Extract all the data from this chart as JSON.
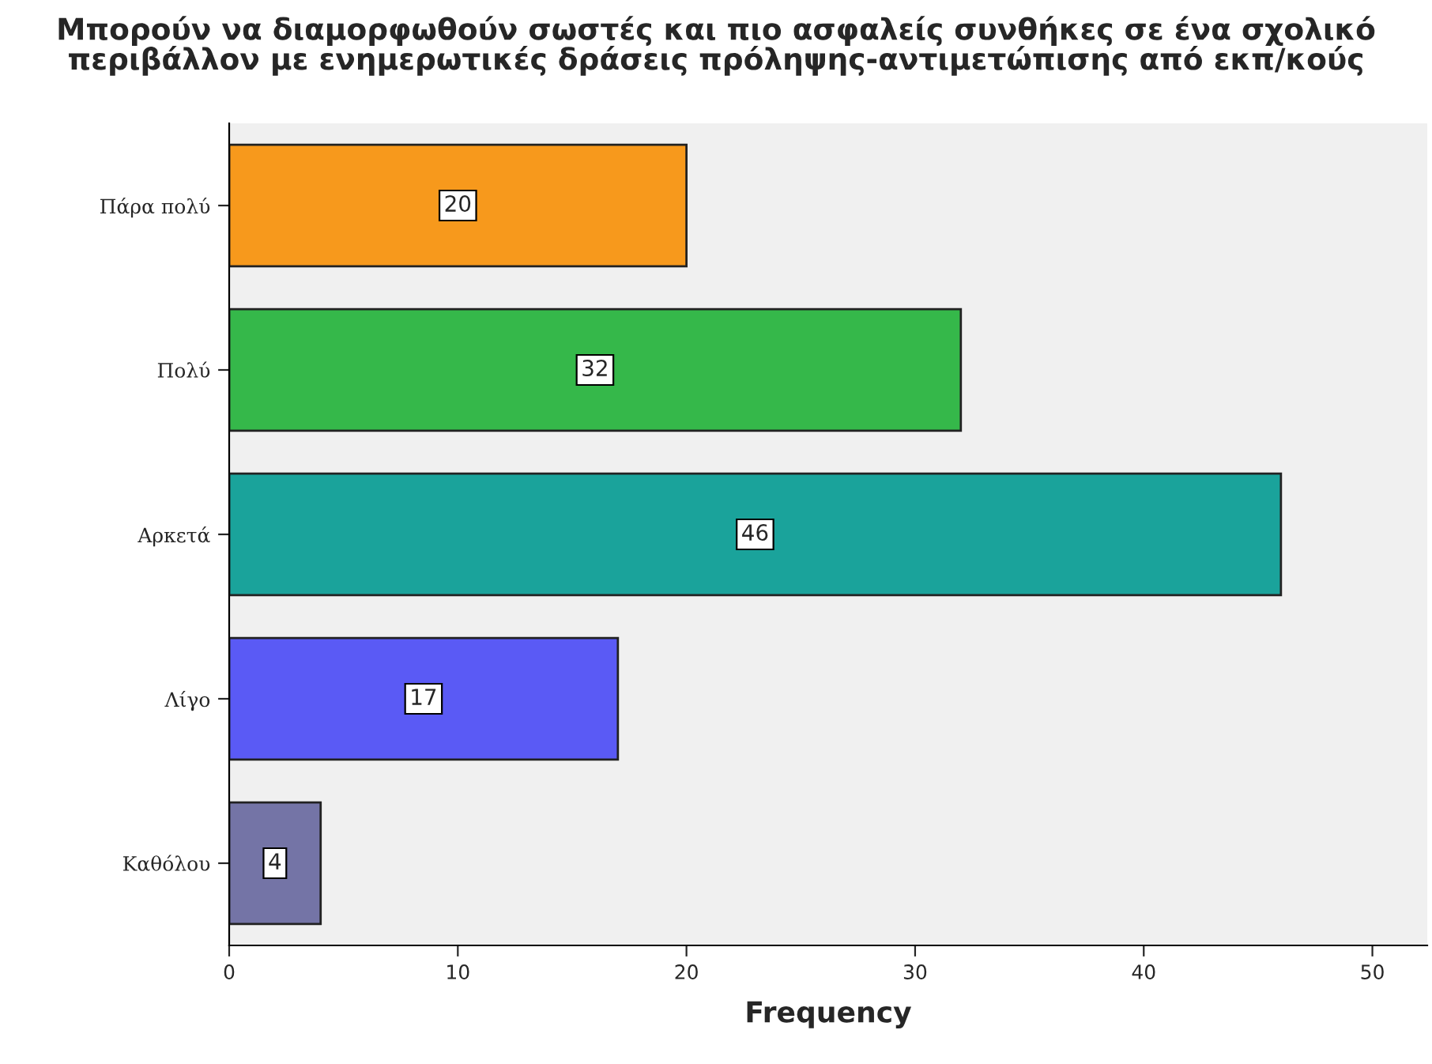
{
  "chart_data": {
    "type": "bar",
    "orientation": "horizontal",
    "title": "Μπορούν να διαμορφωθούν σωστές και πιο ασφαλείς συνθήκες σε ένα σχολικό\nπεριβάλλον με ενημερωτικές δράσεις πρόληψης-αντιμετώπισης από εκπ/κούς",
    "xlabel": "Frequency",
    "categories": [
      "Πάρα πολύ",
      "Πολύ",
      "Αρκετά",
      "Λίγο",
      "Καθόλου"
    ],
    "values": [
      20,
      32,
      46,
      17,
      4
    ],
    "colors": [
      "#f7991c",
      "#35b84a",
      "#1aa39b",
      "#5a5af5",
      "#7474a6"
    ],
    "xlim": [
      0,
      52.4
    ],
    "xticks": [
      0,
      10,
      20,
      30,
      40,
      50
    ],
    "data_labels": true,
    "grid": false
  }
}
